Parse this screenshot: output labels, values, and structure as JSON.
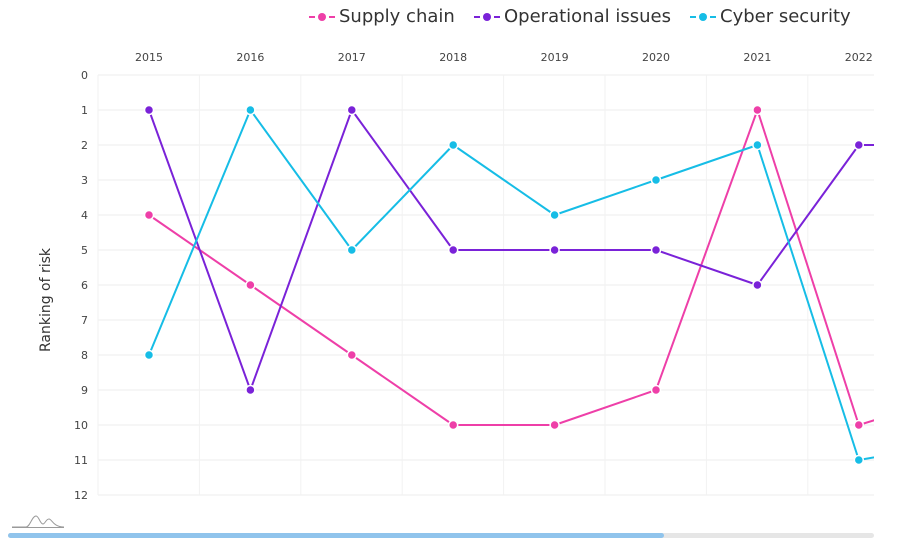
{
  "chart_data": {
    "type": "line",
    "title": "",
    "xlabel": "",
    "ylabel": "Ranking of risk",
    "x": [
      "2015",
      "2016",
      "2017",
      "2018",
      "2019",
      "2020",
      "2021",
      "2022"
    ],
    "y_ticks": [
      "0",
      "1",
      "2",
      "3",
      "4",
      "5",
      "6",
      "7",
      "8",
      "9",
      "10",
      "11",
      "12"
    ],
    "ylim": [
      0,
      12
    ],
    "y_reversed": true,
    "x_axis_position": "top",
    "grid": true,
    "legend_position": "top-right",
    "series": [
      {
        "name": "Supply chain",
        "color": "#ee3fa8",
        "values": [
          4,
          6,
          8,
          10,
          10,
          9,
          1,
          10
        ]
      },
      {
        "name": "Operational issues",
        "color": "#7a22d8",
        "values": [
          1,
          9,
          1,
          5,
          5,
          5,
          6,
          2
        ]
      },
      {
        "name": "Cyber security",
        "color": "#16bde6",
        "values": [
          8,
          1,
          5,
          2,
          4,
          3,
          2,
          11
        ]
      }
    ],
    "overflow_segments": [
      {
        "series": 0,
        "to_value": 9.1
      },
      {
        "series": 1,
        "to_value": 2
      },
      {
        "series": 2,
        "to_value": 10.5
      }
    ],
    "navigator_visible_fraction": 0.757
  },
  "icons": {
    "navigator": "mountain-range-icon"
  }
}
